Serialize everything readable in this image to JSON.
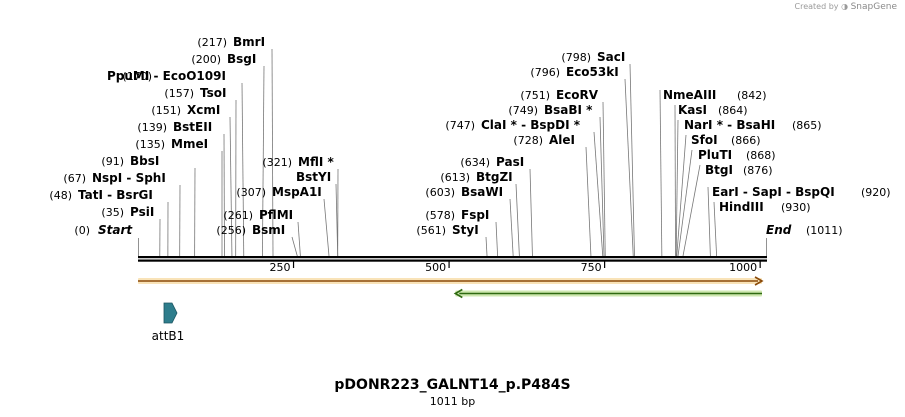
{
  "credit": {
    "prefix": "Created by",
    "brand": "SnapGene"
  },
  "plasmid": {
    "name": "pDONR223_GALNT14_p.P484S",
    "length_label": "1011 bp",
    "length": 1011
  },
  "ends": [
    {
      "pos_label": "(0)",
      "name": "Start",
      "pos": 0
    },
    {
      "pos_label": "(1011)",
      "name": "End",
      "pos": 1011
    }
  ],
  "ruler_ticks": [
    {
      "value": 250,
      "label": "250"
    },
    {
      "value": 500,
      "label": "500"
    },
    {
      "value": 750,
      "label": "750"
    },
    {
      "value": 1000,
      "label": "1000"
    }
  ],
  "left_sites": [
    {
      "pos_label": "(217)",
      "name": "BmrI",
      "pos": 217
    },
    {
      "pos_label": "(200)",
      "name": "BsgI",
      "pos": 200
    },
    {
      "pos_label": "(170)",
      "name": "PpuMI - EcoO109I",
      "pos": 170
    },
    {
      "pos_label": "(157)",
      "name": "TsoI",
      "pos": 157
    },
    {
      "pos_label": "(151)",
      "name": "XcmI",
      "pos": 151
    },
    {
      "pos_label": "(139)",
      "name": "BstEII",
      "pos": 139
    },
    {
      "pos_label": "(135)",
      "name": "MmeI",
      "pos": 135
    },
    {
      "pos_label": "(91)",
      "name": "BbsI",
      "pos": 91
    },
    {
      "pos_label": "(67)",
      "name": "NspI - SphI",
      "pos": 67
    },
    {
      "pos_label": "(48)",
      "name": "TatI - BsrGI",
      "pos": 48
    },
    {
      "pos_label": "(35)",
      "name": "PsiI",
      "pos": 35
    }
  ],
  "mid_sites": [
    {
      "pos_label": "(321)",
      "name": "MflI *",
      "pos": 321
    },
    {
      "pos_label": "",
      "name": "BstYI",
      "pos": 321
    },
    {
      "pos_label": "(307)",
      "name": "MspA1I",
      "pos": 307
    },
    {
      "pos_label": "(261)",
      "name": "PflMI",
      "pos": 261
    },
    {
      "pos_label": "(256)",
      "name": "BsmI",
      "pos": 256
    }
  ],
  "center_sites": [
    {
      "pos_label": "(634)",
      "name": "PasI",
      "pos": 634
    },
    {
      "pos_label": "(613)",
      "name": "BtgZI",
      "pos": 613
    },
    {
      "pos_label": "(603)",
      "name": "BsaWI",
      "pos": 603
    },
    {
      "pos_label": "(578)",
      "name": "FspI",
      "pos": 578
    },
    {
      "pos_label": "(561)",
      "name": "StyI",
      "pos": 561
    }
  ],
  "right_center_sites": [
    {
      "pos_label": "(798)",
      "name": "SacI",
      "pos": 798
    },
    {
      "pos_label": "(796)",
      "name": "Eco53kI",
      "pos": 796
    },
    {
      "pos_label": "(751)",
      "name": "EcoRV",
      "pos": 751
    },
    {
      "pos_label": "(749)",
      "name": "BsaBI *",
      "pos": 749
    },
    {
      "pos_label": "(747)",
      "name": "ClaI * - BspDI *",
      "pos": 747
    },
    {
      "pos_label": "(728)",
      "name": "AleI",
      "pos": 728
    }
  ],
  "right_sites": [
    {
      "pos_label": "(842)",
      "name": "NmeAIII",
      "pos": 842
    },
    {
      "pos_label": "(864)",
      "name": "KasI",
      "pos": 864
    },
    {
      "pos_label": "(865)",
      "name": "NarI * - BsaHI",
      "pos": 865
    },
    {
      "pos_label": "(866)",
      "name": "SfoI",
      "pos": 866
    },
    {
      "pos_label": "(868)",
      "name": "PluTI",
      "pos": 868
    },
    {
      "pos_label": "(876)",
      "name": "BtgI",
      "pos": 876
    },
    {
      "pos_label": "(920)",
      "name": "EarI - SapI - BspQI",
      "pos": 920
    },
    {
      "pos_label": "(930)",
      "name": "HindIII",
      "pos": 930
    }
  ],
  "features": [
    {
      "name": "orange-forward-feature",
      "start": 0,
      "end": 1011,
      "direction": "forward",
      "color": "#e8a33a",
      "fill": "#f9e3b8"
    },
    {
      "name": "green-reverse-feature",
      "start": 510,
      "end": 1011,
      "direction": "reverse",
      "color": "#5a9a2a",
      "fill": "#cfe8b0"
    }
  ],
  "attb1": {
    "label": "attB1",
    "color": "#2e7d8c"
  }
}
